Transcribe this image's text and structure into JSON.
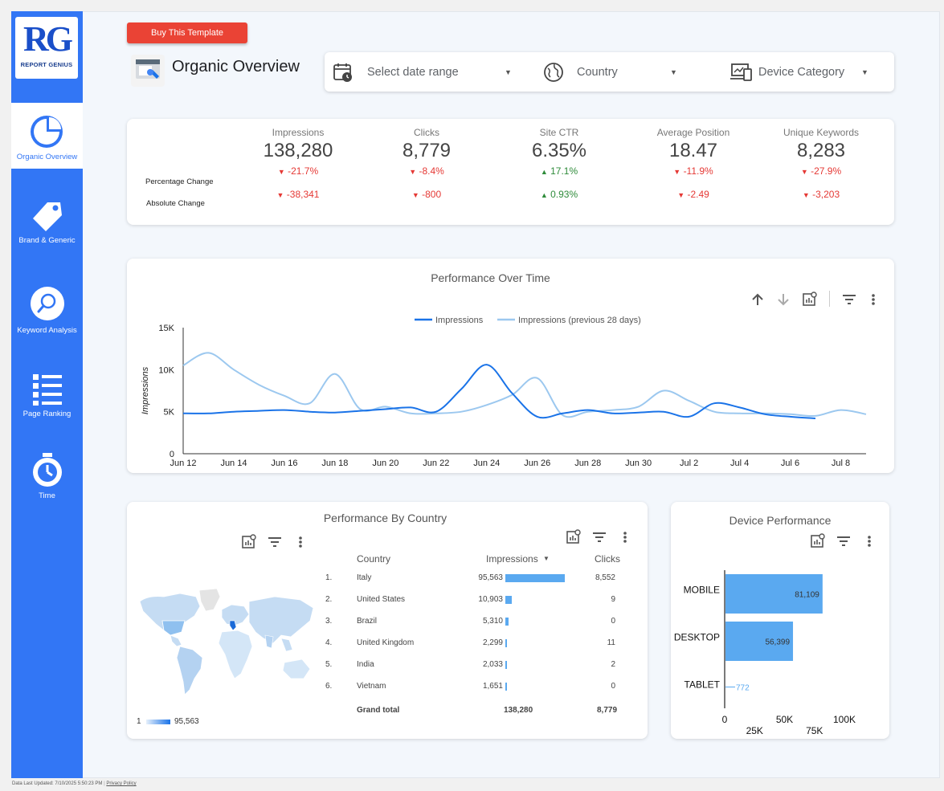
{
  "brand": {
    "logo_text": "RG",
    "logo_sub": "REPORT GENIUS"
  },
  "sidebar": {
    "items": [
      {
        "label": "Organic Overview",
        "icon": "pie-chart-icon",
        "active": true
      },
      {
        "label": "Brand & Generic",
        "icon": "tag-icon",
        "active": false
      },
      {
        "label": "Keyword Analysis",
        "icon": "magnifier-icon",
        "active": false
      },
      {
        "label": "Page Ranking",
        "icon": "list-icon",
        "active": false
      },
      {
        "label": "Time",
        "icon": "stopwatch-icon",
        "active": false
      }
    ]
  },
  "header": {
    "buy_button": "Buy This Template",
    "title": "Organic Overview"
  },
  "filters": {
    "date": "Select date range",
    "country": "Country",
    "device": "Device Category"
  },
  "kpis": {
    "row_labels": {
      "pct": "Percentage Change",
      "abs": "Absolute Change"
    },
    "items": [
      {
        "label": "Impressions",
        "value": "138,280",
        "pct": "-21.7%",
        "abs": "-38,341",
        "dir": "down"
      },
      {
        "label": "Clicks",
        "value": "8,779",
        "pct": "-8.4%",
        "abs": "-800",
        "dir": "down"
      },
      {
        "label": "Site CTR",
        "value": "6.35%",
        "pct": "17.1%",
        "abs": "0.93%",
        "dir": "up"
      },
      {
        "label": "Average Position",
        "value": "18.47",
        "pct": "-11.9%",
        "abs": "-2.49",
        "dir": "down"
      },
      {
        "label": "Unique Keywords",
        "value": "8,283",
        "pct": "-27.9%",
        "abs": "-3,203",
        "dir": "down"
      }
    ]
  },
  "perf_time": {
    "title": "Performance Over Time",
    "colors": {
      "current": "#1a73e8",
      "previous": "#9cc8ef"
    }
  },
  "perf_country": {
    "title": "Performance By Country",
    "map_legend_min": "1",
    "map_legend_max": "95,563",
    "headers": {
      "country": "Country",
      "impressions": "Impressions",
      "clicks": "Clicks"
    },
    "rows": [
      {
        "rank": "1.",
        "country": "Italy",
        "impressions": "95,563",
        "imp_value": 95563,
        "clicks": "8,552"
      },
      {
        "rank": "2.",
        "country": "United States",
        "impressions": "10,903",
        "imp_value": 10903,
        "clicks": "9"
      },
      {
        "rank": "3.",
        "country": "Brazil",
        "impressions": "5,310",
        "imp_value": 5310,
        "clicks": "0"
      },
      {
        "rank": "4.",
        "country": "United Kingdom",
        "impressions": "2,299",
        "imp_value": 2299,
        "clicks": "11"
      },
      {
        "rank": "5.",
        "country": "India",
        "impressions": "2,033",
        "imp_value": 2033,
        "clicks": "2"
      },
      {
        "rank": "6.",
        "country": "Vietnam",
        "impressions": "1,651",
        "imp_value": 1651,
        "clicks": "0"
      }
    ],
    "total": {
      "label": "Grand total",
      "impressions": "138,280",
      "clicks": "8,779"
    }
  },
  "device_perf": {
    "title": "Device Performance"
  },
  "chart_data": [
    {
      "type": "line",
      "title": "Performance Over Time",
      "xlabel": "",
      "ylabel": "Impressions",
      "ylim": [
        0,
        15000
      ],
      "yticks": [
        "0",
        "5K",
        "10K",
        "15K"
      ],
      "x_ticks": [
        "Jun 12",
        "Jun 14",
        "Jun 16",
        "Jun 18",
        "Jun 20",
        "Jun 22",
        "Jun 24",
        "Jun 26",
        "Jun 28",
        "Jun 30",
        "Jul 2",
        "Jul 4",
        "Jul 6",
        "Jul 8"
      ],
      "x": [
        "Jun 12",
        "Jun 13",
        "Jun 14",
        "Jun 15",
        "Jun 16",
        "Jun 17",
        "Jun 18",
        "Jun 19",
        "Jun 20",
        "Jun 21",
        "Jun 22",
        "Jun 23",
        "Jun 24",
        "Jun 25",
        "Jun 26",
        "Jun 27",
        "Jun 28",
        "Jun 29",
        "Jun 30",
        "Jul 1",
        "Jul 2",
        "Jul 3",
        "Jul 4",
        "Jul 5",
        "Jul 6",
        "Jul 7",
        "Jul 8",
        "Jul 9"
      ],
      "series": [
        {
          "name": "Impressions",
          "values": [
            4800,
            4800,
            5000,
            5100,
            5200,
            5000,
            4900,
            5100,
            5300,
            5500,
            5000,
            7700,
            10600,
            7200,
            4400,
            4800,
            5200,
            4800,
            4900,
            5000,
            4400,
            6000,
            5500,
            4700,
            4400,
            4200,
            null,
            null
          ]
        },
        {
          "name": "Impressions (previous 28 days)",
          "values": [
            10500,
            12000,
            10000,
            8200,
            6900,
            6000,
            9500,
            5300,
            5600,
            4800,
            4800,
            5000,
            5800,
            7000,
            9000,
            4600,
            5000,
            5200,
            5600,
            7500,
            6300,
            5000,
            4800,
            4800,
            4700,
            4500,
            5200,
            4700
          ]
        }
      ],
      "legend": "top-center",
      "grid": false
    },
    {
      "type": "bar",
      "title": "Device Performance",
      "orientation": "horizontal",
      "categories": [
        "MOBILE",
        "DESKTOP",
        "TABLET"
      ],
      "values": [
        81109,
        56399,
        772
      ],
      "value_labels": [
        "81,109",
        "56,399",
        "772"
      ],
      "xlim": [
        0,
        100000
      ],
      "xticks": [
        "0",
        "25K",
        "50K",
        "75K",
        "100K"
      ]
    }
  ],
  "footer": {
    "updated": "Data Last Updated: 7/10/2025 5:50:23 PM",
    "privacy": "Privacy Policy"
  }
}
